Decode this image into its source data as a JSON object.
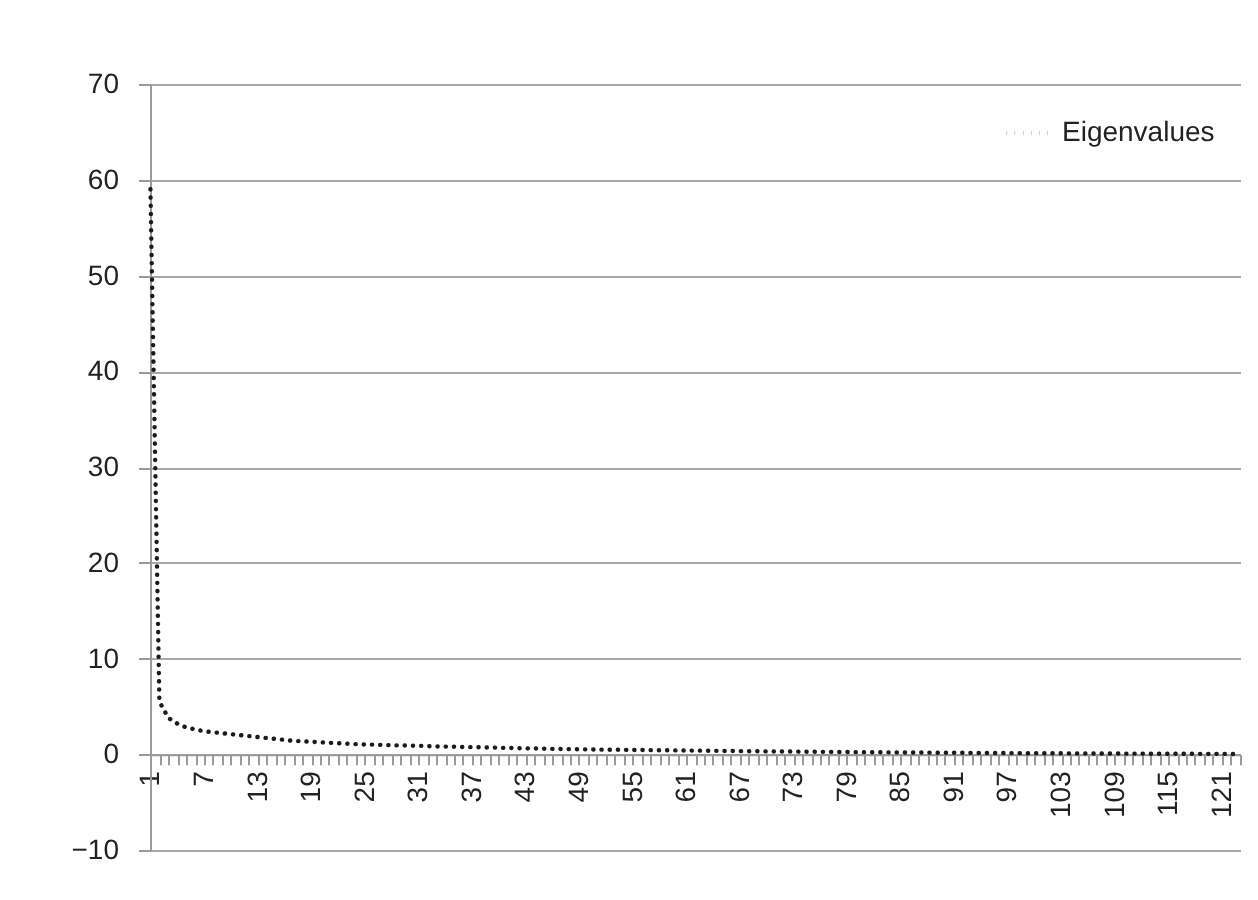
{
  "chart_data": {
    "type": "line",
    "categories": [
      "1",
      null,
      null,
      null,
      null,
      null,
      "7",
      null,
      null,
      null,
      null,
      null,
      "13",
      null,
      null,
      null,
      null,
      null,
      "19",
      null,
      null,
      null,
      null,
      null,
      "25",
      null,
      null,
      null,
      null,
      null,
      "31",
      null,
      null,
      null,
      null,
      null,
      "37",
      null,
      null,
      null,
      null,
      null,
      "43",
      null,
      null,
      null,
      null,
      null,
      "49",
      null,
      null,
      null,
      null,
      null,
      "55",
      null,
      null,
      null,
      null,
      null,
      "61",
      null,
      null,
      null,
      null,
      null,
      "67",
      null,
      null,
      null,
      null,
      null,
      "73",
      null,
      null,
      null,
      null,
      null,
      "79",
      null,
      null,
      null,
      null,
      null,
      "85",
      null,
      null,
      null,
      null,
      null,
      "91",
      null,
      null,
      null,
      null,
      null,
      "97",
      null,
      null,
      null,
      null,
      null,
      "103",
      null,
      null,
      null,
      null,
      null,
      "109",
      null,
      null,
      null,
      null,
      null,
      "115",
      null,
      null,
      null,
      null,
      null,
      "121",
      null,
      null
    ],
    "series": [
      {
        "name": "Eigenvalues",
        "color": "#1a1a1a",
        "values": [
          59,
          5.5,
          3.8,
          3.2,
          2.8,
          2.6,
          2.4,
          2.3,
          2.2,
          2.1,
          2.0,
          1.9,
          1.8,
          1.7,
          1.6,
          1.5,
          1.4,
          1.35,
          1.3,
          1.25,
          1.2,
          1.15,
          1.1,
          1.06,
          1.02,
          1.0,
          0.97,
          0.94,
          0.92,
          0.9,
          0.88,
          0.85,
          0.82,
          0.8,
          0.78,
          0.76,
          0.74,
          0.72,
          0.7,
          0.68,
          0.66,
          0.64,
          0.62,
          0.6,
          0.58,
          0.56,
          0.55,
          0.53,
          0.52,
          0.5,
          0.49,
          0.48,
          0.47,
          0.46,
          0.45,
          0.44,
          0.43,
          0.42,
          0.41,
          0.4,
          0.39,
          0.38,
          0.37,
          0.36,
          0.35,
          0.34,
          0.33,
          0.32,
          0.31,
          0.3,
          0.29,
          0.28,
          0.28,
          0.27,
          0.26,
          0.25,
          0.25,
          0.24,
          0.23,
          0.22,
          0.22,
          0.21,
          0.2,
          0.2,
          0.19,
          0.18,
          0.18,
          0.17,
          0.16,
          0.16,
          0.15,
          0.15,
          0.14,
          0.14,
          0.13,
          0.13,
          0.12,
          0.12,
          0.11,
          0.11,
          0.1,
          0.1,
          0.1,
          0.09,
          0.09,
          0.09,
          0.08,
          0.08,
          0.08,
          0.07,
          0.07,
          0.07,
          0.06,
          0.06,
          0.06,
          0.05,
          0.05,
          0.05,
          0.04,
          0.04,
          0.04,
          0.03,
          0.03
        ]
      }
    ],
    "ylim": [
      -10,
      70
    ],
    "yticks": [
      -10,
      0,
      10,
      20,
      30,
      40,
      50,
      60,
      70
    ],
    "grid": "y",
    "legend": "top right",
    "line_style": "dotted",
    "marker": "none"
  }
}
